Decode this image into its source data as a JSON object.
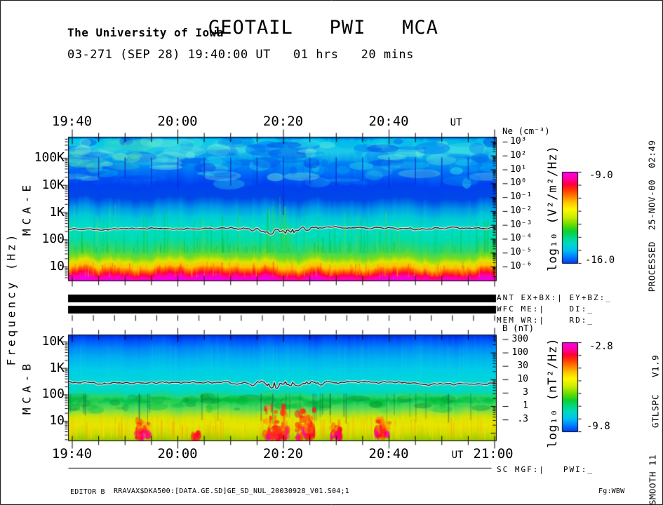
{
  "header": {
    "institution": "The University of Iowa",
    "title": "GEOTAIL   PWI   MCA",
    "subtitle": "03-271 (SEP 28) 19:40:00 UT   01 hrs   20 mins"
  },
  "time_axis": {
    "labels": [
      "19:40",
      "20:00",
      "20:20",
      "20:40"
    ],
    "ut": "UT",
    "end": "21:00",
    "minor_tick_minutes": 5,
    "duration_minutes": 80
  },
  "rainbow_palette": [
    [
      0,
      "#ff00f0"
    ],
    [
      0.08,
      "#ff00a0"
    ],
    [
      0.14,
      "#ff0038"
    ],
    [
      0.2,
      "#ff3800"
    ],
    [
      0.27,
      "#ff8000"
    ],
    [
      0.34,
      "#ffc800"
    ],
    [
      0.41,
      "#fff800"
    ],
    [
      0.5,
      "#c8ec00"
    ],
    [
      0.58,
      "#68dc00"
    ],
    [
      0.65,
      "#10d030"
    ],
    [
      0.72,
      "#00d888"
    ],
    [
      0.79,
      "#00d8c8"
    ],
    [
      0.86,
      "#00c0f0"
    ],
    [
      0.93,
      "#0080ff"
    ],
    [
      1,
      "#0040f8"
    ]
  ],
  "chart_data": [
    {
      "type": "heatmap",
      "title": "MCA-E electric field spectrogram",
      "panel_label": "MCA-E",
      "x_axis": {
        "label": "UT",
        "ticks": [
          "19:40",
          "20:00",
          "20:20",
          "20:40"
        ],
        "start": "19:40",
        "end": "21:00",
        "duration_minutes": 80
      },
      "y_axis": {
        "label": "Frequency (Hz)",
        "scale": "log",
        "ticks": [
          "100K",
          "10K",
          "1K",
          "100",
          "10"
        ]
      },
      "right_axis": {
        "label": "Ne (cm⁻³)",
        "ticks": [
          "10³",
          "10²",
          "10¹",
          "10⁰",
          "10⁻¹",
          "10⁻²",
          "10⁻³",
          "10⁻⁴",
          "10⁻⁵",
          "10⁻⁶"
        ]
      },
      "colorbar": {
        "label": "log₁₀ (V²/m²/Hz)",
        "max_label": "-9.0",
        "min_label": "-16.0"
      },
      "trace_frac": 0.64,
      "jitter": 6,
      "interference_tick_minutes": 5,
      "bands": [
        [
          0.0,
          "#0090e0"
        ],
        [
          0.025,
          "#00c8e8"
        ],
        [
          0.1,
          "#20c8e8"
        ],
        [
          0.17,
          "#0098f0"
        ],
        [
          0.26,
          "#0068f8"
        ],
        [
          0.34,
          "#0040f0"
        ],
        [
          0.43,
          "#0048e8"
        ],
        [
          0.5,
          "#0098e8"
        ],
        [
          0.56,
          "#00c8d8"
        ],
        [
          0.63,
          "#00dcc8"
        ],
        [
          0.72,
          "#00dcb0"
        ],
        [
          0.79,
          "#30d868"
        ],
        [
          0.84,
          "#78dc20"
        ],
        [
          0.875,
          "#e0e400"
        ],
        [
          0.91,
          "#ffc000"
        ],
        [
          0.935,
          "#ff5800"
        ],
        [
          0.958,
          "#ff0048"
        ],
        [
          0.978,
          "#ff00a8"
        ],
        [
          1.0,
          "#f000e0"
        ]
      ]
    },
    {
      "type": "heatmap",
      "title": "MCA-B magnetic field spectrogram",
      "panel_label": "MCA-B",
      "x_axis": {
        "label": "UT",
        "ticks": [
          "19:40",
          "20:00",
          "20:20",
          "20:40"
        ],
        "start": "19:40",
        "end": "21:00",
        "duration_minutes": 80
      },
      "y_axis": {
        "label": "Frequency (Hz)",
        "scale": "log",
        "ticks": [
          "10K",
          "1K",
          "100",
          "10"
        ]
      },
      "right_axis": {
        "label": "B (nT)",
        "ticks": [
          "300",
          "100",
          "30",
          "10",
          "3",
          "1",
          ".3"
        ]
      },
      "colorbar": {
        "label": "log₁₀ (nT²/Hz)",
        "max_label": "-2.8",
        "min_label": "-9.8"
      },
      "trace_frac": 0.455,
      "jitter": 4,
      "bands": [
        [
          0.0,
          "#0028d8"
        ],
        [
          0.05,
          "#0050f8"
        ],
        [
          0.13,
          "#0088f8"
        ],
        [
          0.22,
          "#00b0f0"
        ],
        [
          0.33,
          "#00cce8"
        ],
        [
          0.45,
          "#00d8d8"
        ],
        [
          0.54,
          "#00d8c0"
        ],
        [
          0.585,
          "#28d470"
        ],
        [
          0.62,
          "#00c448"
        ],
        [
          0.66,
          "#38d460"
        ],
        [
          0.7,
          "#60dc50"
        ],
        [
          0.74,
          "#a0e030"
        ],
        [
          0.79,
          "#d8e400"
        ],
        [
          0.86,
          "#e8e400"
        ],
        [
          0.93,
          "#d0dc00"
        ],
        [
          1.0,
          "#98cc00"
        ]
      ],
      "burst_regions": [
        {
          "x": 0.175,
          "spread": 0.016,
          "n": 40,
          "rise": 0.17
        },
        {
          "x": 0.3,
          "spread": 0.008,
          "n": 12,
          "rise": 0.09
        },
        {
          "x": 0.485,
          "spread": 0.028,
          "n": 90,
          "rise": 0.3
        },
        {
          "x": 0.555,
          "spread": 0.02,
          "n": 70,
          "rise": 0.27
        },
        {
          "x": 0.625,
          "spread": 0.012,
          "n": 30,
          "rise": 0.15
        },
        {
          "x": 0.735,
          "spread": 0.016,
          "n": 36,
          "rise": 0.17
        }
      ]
    }
  ],
  "status": {
    "rows": [
      {
        "bar": true,
        "label": "ANT EX+BX:| EY+BZ:_"
      },
      {
        "bar": true,
        "label": "WFC ME:|    DI:_"
      },
      {
        "bar": false,
        "label": "MEM WR:|    RD:_"
      }
    ],
    "sc_row": "SC MGF:|   PWI:_"
  },
  "footer": {
    "editor": "EDITOR B",
    "file": "RRAVAX$DKA500:[DATA.GE.SD]GE_SD_NUL_20030928_V01.S04;1",
    "flag": "Fg:WBW"
  },
  "side_notes": {
    "processed": "PROCESSED  25-NOV-00  02:49",
    "version": "GTLSPC   V1.9",
    "smooth": "SMOOTH 11"
  }
}
